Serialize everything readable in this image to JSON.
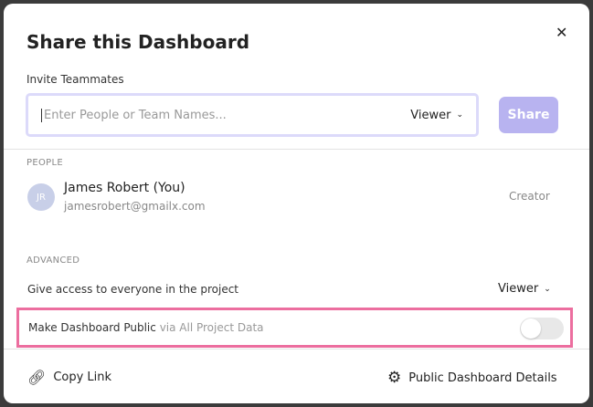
{
  "modal": {
    "title": "Share this Dashboard",
    "close_icon": "close-icon"
  },
  "invite": {
    "label": "Invite Teammates",
    "placeholder": "Enter People or Team Names...",
    "role": "Viewer",
    "share_label": "Share",
    "share_color": "#b8b3f0"
  },
  "people": {
    "heading": "PEOPLE",
    "items": [
      {
        "initials": "JR",
        "name": "James Robert (You)",
        "email": "jamesrobert@gmailx.com",
        "role": "Creator"
      }
    ]
  },
  "advanced": {
    "heading": "ADVANCED",
    "access_label": "Give access to everyone in the project",
    "access_role": "Viewer",
    "public_label": "Make Dashboard Public",
    "public_sub": "via All Project Data",
    "public_enabled": false,
    "highlight_color": "#ec6e9f"
  },
  "footer": {
    "copy_link": "Copy Link",
    "details": "Public Dashboard Details"
  }
}
